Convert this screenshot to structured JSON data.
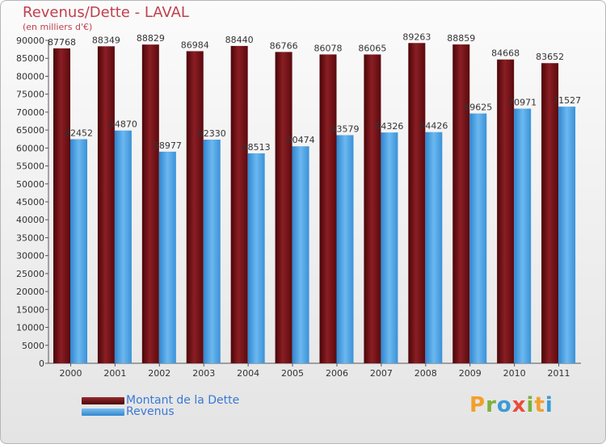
{
  "title": "Revenus/Dette - LAVAL",
  "subtitle": "(en milliers d'€)",
  "brand": {
    "letters": [
      "P",
      "r",
      "o",
      "x",
      "i",
      "t",
      "i"
    ],
    "colors": [
      "#f2a02c",
      "#7cb13a",
      "#3c9ad6",
      "#e84c3d",
      "#7cb13a",
      "#f2a02c",
      "#3c9ad6"
    ]
  },
  "chart_data": {
    "type": "bar",
    "categories": [
      "2000",
      "2001",
      "2002",
      "2003",
      "2004",
      "2005",
      "2006",
      "2007",
      "2008",
      "2009",
      "2010",
      "2011"
    ],
    "series": [
      {
        "name": "Montant de la Dette",
        "color": "#6b0f14",
        "values": [
          87768,
          88349,
          88829,
          86984,
          88440,
          86766,
          86078,
          86065,
          89263,
          88859,
          84668,
          83652
        ]
      },
      {
        "name": "Revenus",
        "color": "#4aa3e6",
        "values": [
          62452,
          64870,
          58977,
          62330,
          58513,
          60474,
          63579,
          64326,
          64426,
          69625,
          70971,
          71527
        ]
      }
    ],
    "ylim": [
      0,
      90000
    ],
    "yticks": [
      0,
      5000,
      10000,
      15000,
      20000,
      25000,
      30000,
      35000,
      40000,
      45000,
      50000,
      55000,
      60000,
      65000,
      70000,
      75000,
      80000,
      85000,
      90000
    ],
    "grid": false,
    "legend": "bottom-left"
  }
}
